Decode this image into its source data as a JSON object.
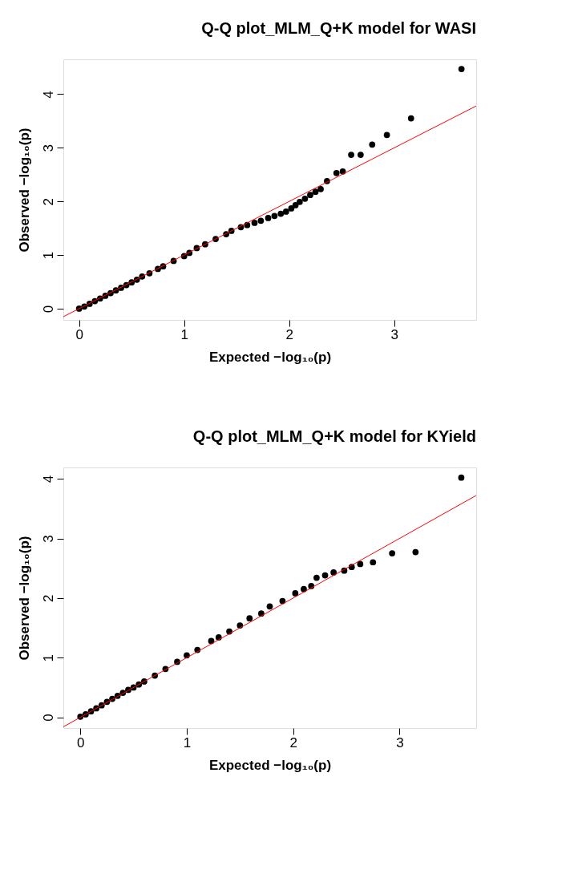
{
  "chart_data": [
    {
      "type": "scatter",
      "title": "Q-Q plot_MLM_Q+K model for WASI",
      "xlabel": "Expected  −log₁₀(p)",
      "ylabel": "Observed  −log₁₀(p)",
      "xlim": [
        -0.15,
        3.78
      ],
      "ylim": [
        -0.21,
        4.65
      ],
      "xticks": [
        0,
        1,
        2,
        3
      ],
      "yticks": [
        0,
        1,
        2,
        3,
        4
      ],
      "series": [
        {
          "type": "scatter",
          "marker": "circle",
          "color": "#000000",
          "x": [
            0.0,
            0.05,
            0.1,
            0.15,
            0.2,
            0.25,
            0.3,
            0.35,
            0.4,
            0.45,
            0.5,
            0.55,
            0.6,
            0.67,
            0.75,
            0.8,
            0.9,
            1.0,
            1.05,
            1.12,
            1.2,
            1.3,
            1.4,
            1.45,
            1.54,
            1.6,
            1.67,
            1.73,
            1.8,
            1.86,
            1.92,
            1.97,
            2.02,
            2.06,
            2.1,
            2.15,
            2.2,
            2.25,
            2.3,
            2.36,
            2.45,
            2.51,
            2.59,
            2.68,
            2.79,
            2.93,
            3.16,
            3.64
          ],
          "values": [
            0.0,
            0.04,
            0.09,
            0.14,
            0.19,
            0.24,
            0.29,
            0.34,
            0.39,
            0.44,
            0.49,
            0.54,
            0.6,
            0.66,
            0.74,
            0.79,
            0.89,
            0.98,
            1.04,
            1.13,
            1.2,
            1.3,
            1.39,
            1.45,
            1.52,
            1.56,
            1.6,
            1.64,
            1.69,
            1.73,
            1.77,
            1.81,
            1.87,
            1.93,
            1.99,
            2.05,
            2.12,
            2.18,
            2.23,
            2.38,
            2.53,
            2.56,
            2.87,
            2.87,
            3.06,
            3.24,
            3.55,
            4.47
          ]
        },
        {
          "type": "line",
          "color": "#ff0000",
          "x": [
            -0.15,
            3.78
          ],
          "values": [
            -0.15,
            3.78
          ]
        }
      ]
    },
    {
      "type": "scatter",
      "title": "Q-Q plot_MLM_Q+K model for KYield",
      "xlabel": "Expected  −log₁₀(p)",
      "ylabel": "Observed  −log₁₀(p)",
      "xlim": [
        -0.16,
        3.72
      ],
      "ylim": [
        -0.18,
        4.19
      ],
      "xticks": [
        0,
        1,
        2,
        3
      ],
      "yticks": [
        0,
        1,
        2,
        3,
        4
      ],
      "series": [
        {
          "type": "scatter",
          "marker": "circle",
          "color": "#000000",
          "x": [
            0.0,
            0.05,
            0.1,
            0.15,
            0.2,
            0.25,
            0.3,
            0.35,
            0.4,
            0.45,
            0.5,
            0.55,
            0.6,
            0.7,
            0.8,
            0.91,
            1.0,
            1.1,
            1.23,
            1.3,
            1.4,
            1.5,
            1.59,
            1.7,
            1.78,
            1.9,
            2.02,
            2.1,
            2.17,
            2.22,
            2.3,
            2.38,
            2.48,
            2.55,
            2.63,
            2.75,
            2.93,
            3.15,
            3.58
          ],
          "values": [
            0.01,
            0.05,
            0.1,
            0.15,
            0.2,
            0.26,
            0.31,
            0.36,
            0.41,
            0.46,
            0.5,
            0.55,
            0.6,
            0.7,
            0.81,
            0.93,
            1.04,
            1.13,
            1.28,
            1.34,
            1.44,
            1.54,
            1.66,
            1.74,
            1.86,
            1.95,
            2.08,
            2.15,
            2.2,
            2.34,
            2.38,
            2.43,
            2.46,
            2.52,
            2.57,
            2.6,
            2.75,
            2.77,
            4.02
          ]
        },
        {
          "type": "line",
          "color": "#ff0000",
          "x": [
            -0.16,
            3.72
          ],
          "values": [
            -0.16,
            3.72
          ]
        }
      ]
    }
  ]
}
